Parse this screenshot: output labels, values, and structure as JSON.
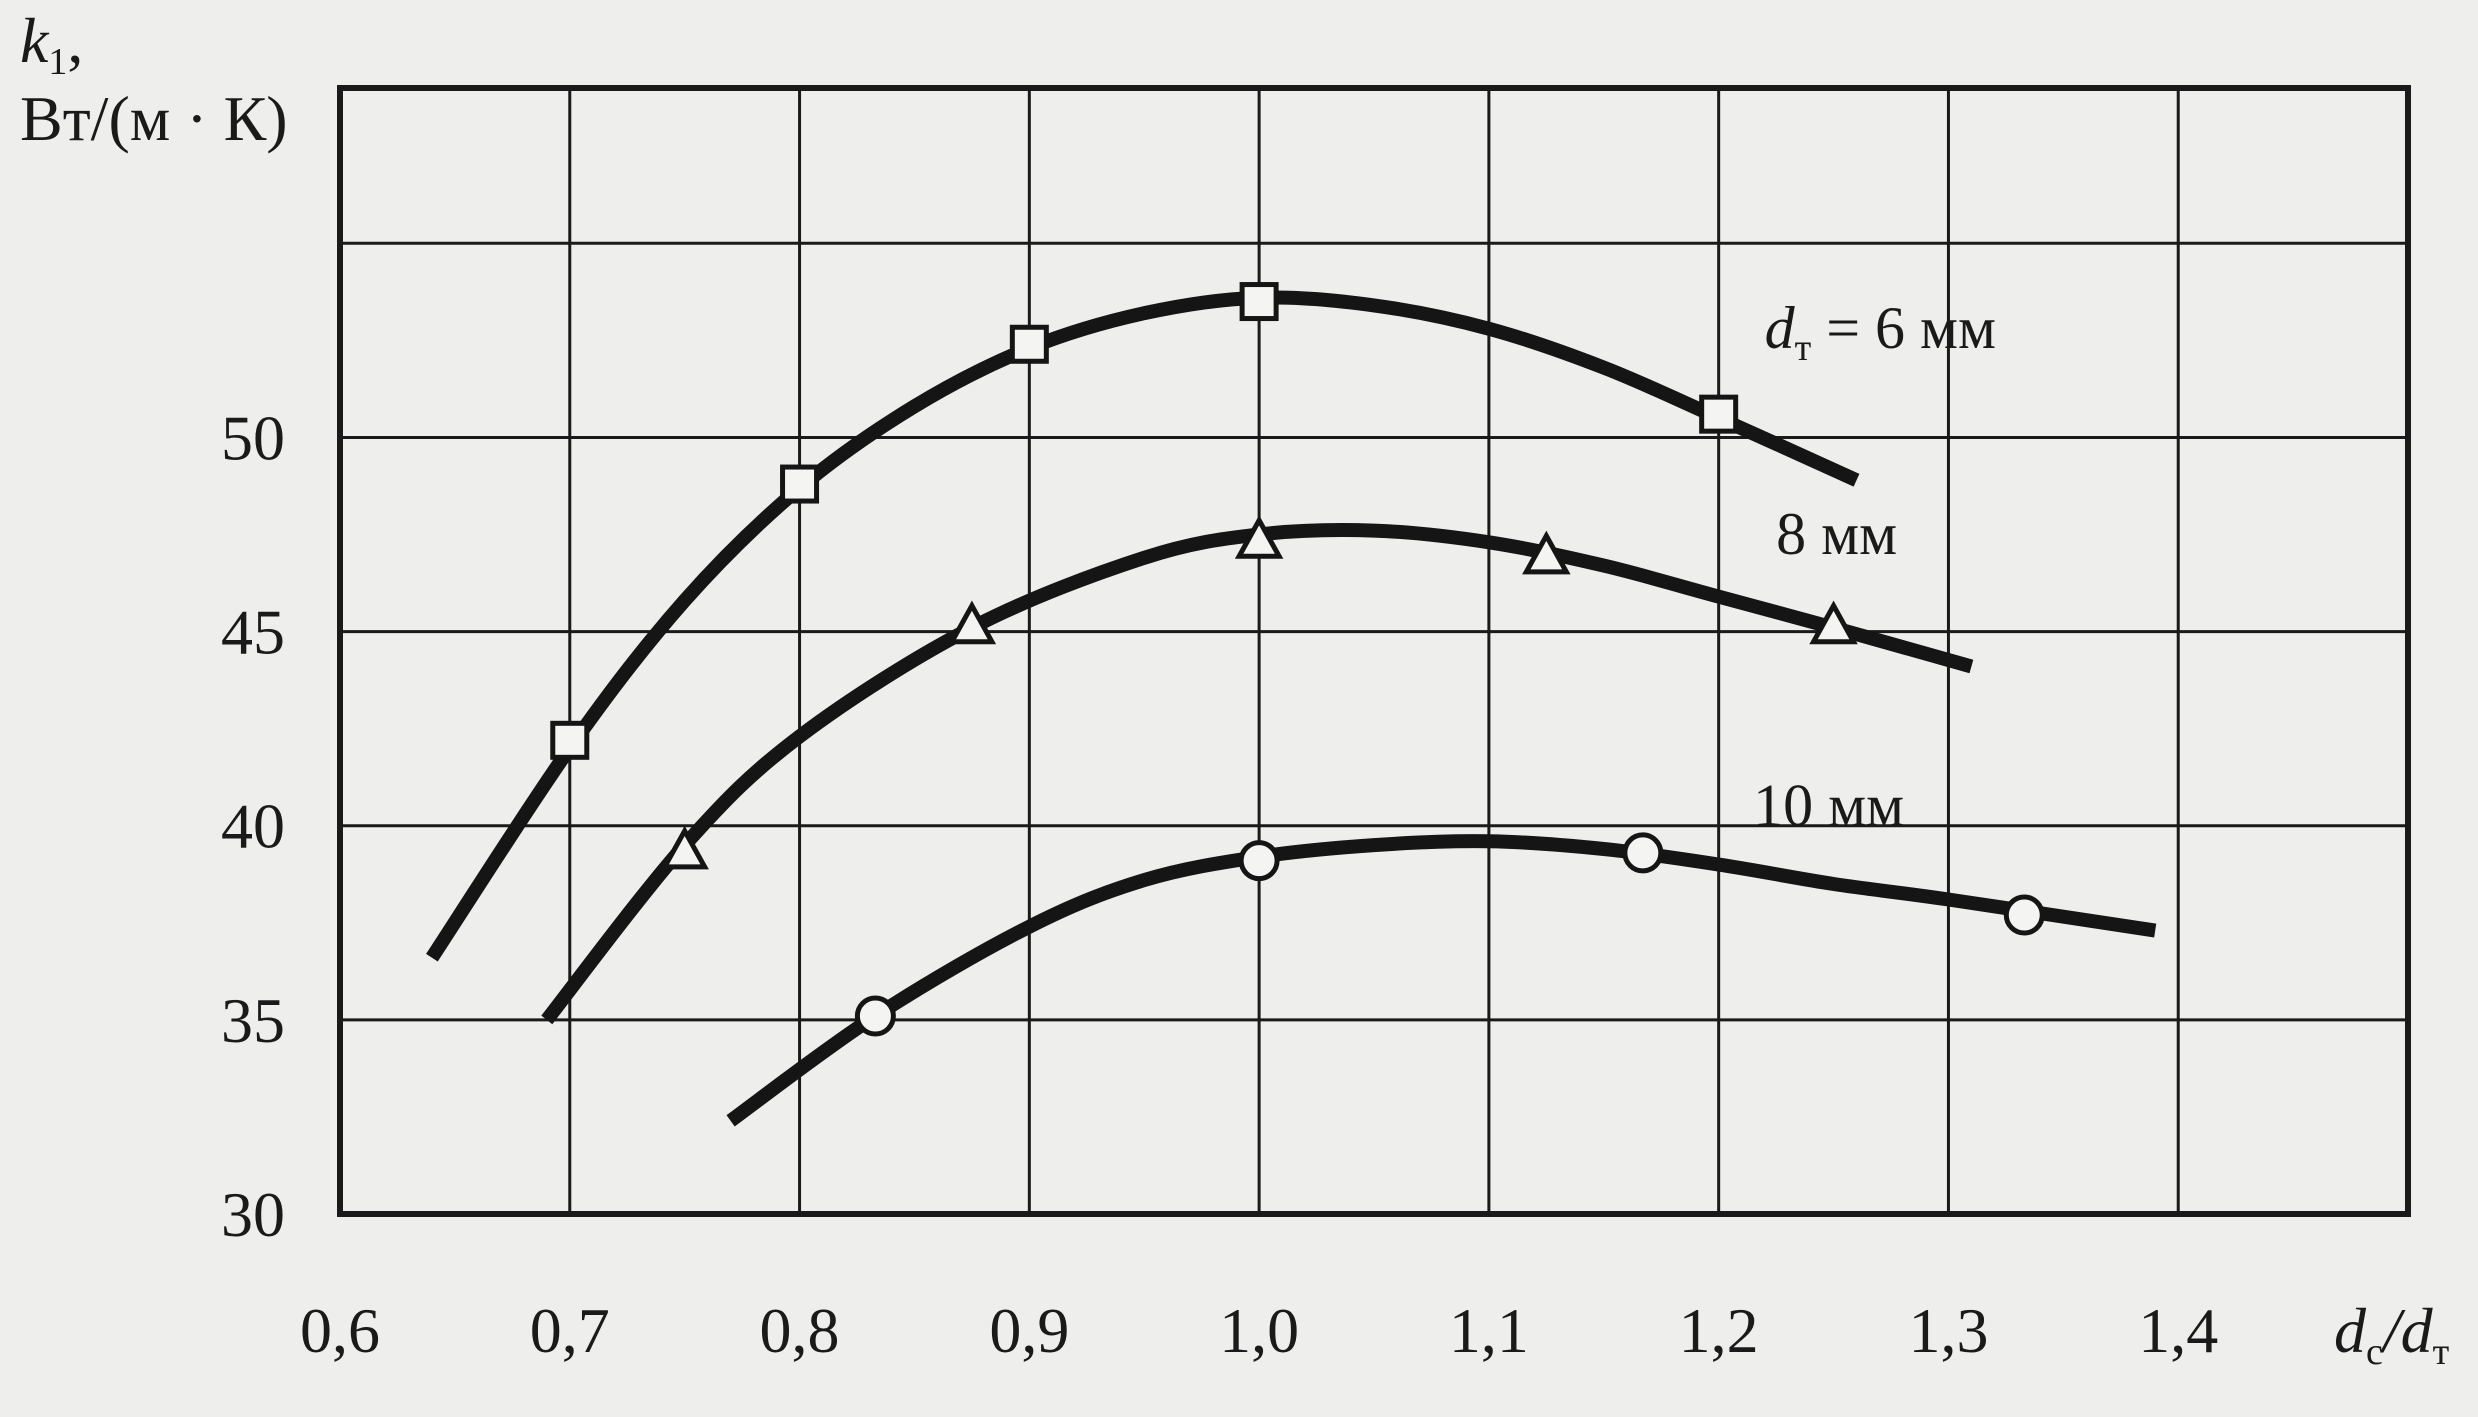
{
  "chart_data": {
    "type": "line",
    "title": "",
    "xlabel": {
      "main": "d",
      "sub": "с",
      "rest": "/d",
      "sub2": "т"
    },
    "ylabel": {
      "line1_main": "k",
      "line1_sub": "1",
      "line1_rest": ",",
      "line2": "Вт/(м · К)"
    },
    "xlim": [
      0.6,
      1.5
    ],
    "ylim": [
      30,
      59
    ],
    "grid": true,
    "x_ticks": [
      0.6,
      0.7,
      0.8,
      0.9,
      1.0,
      1.1,
      1.2,
      1.3,
      1.4,
      1.5
    ],
    "x_tick_labels": [
      "0,6",
      "0,7",
      "0,8",
      "0,9",
      "1,0",
      "1,1",
      "1,2",
      "1,3",
      "1,4"
    ],
    "y_ticks": [
      30,
      35,
      40,
      45,
      50,
      55
    ],
    "y_tick_labels": [
      "30",
      "35",
      "40",
      "45",
      "50"
    ],
    "series": [
      {
        "label_main": "d",
        "label_sub": "т",
        "label_rest": " = 6 мм",
        "marker": "square",
        "curve": [
          [
            0.64,
            36.6
          ],
          [
            0.7,
            42.0
          ],
          [
            0.75,
            45.8
          ],
          [
            0.8,
            48.7
          ],
          [
            0.85,
            50.8
          ],
          [
            0.9,
            52.3
          ],
          [
            0.95,
            53.2
          ],
          [
            1.0,
            53.6
          ],
          [
            1.05,
            53.4
          ],
          [
            1.1,
            52.8
          ],
          [
            1.15,
            51.8
          ],
          [
            1.2,
            50.5
          ],
          [
            1.26,
            48.9
          ]
        ],
        "points": [
          [
            0.7,
            42.2
          ],
          [
            0.8,
            48.8
          ],
          [
            0.9,
            52.4
          ],
          [
            1.0,
            53.5
          ],
          [
            1.2,
            50.6
          ]
        ]
      },
      {
        "label_main": "",
        "label_sub": "",
        "label_rest": "8 мм",
        "marker": "triangle",
        "curve": [
          [
            0.69,
            35.0
          ],
          [
            0.75,
            39.5
          ],
          [
            0.8,
            42.3
          ],
          [
            0.875,
            45.1
          ],
          [
            0.95,
            46.9
          ],
          [
            1.0,
            47.5
          ],
          [
            1.05,
            47.6
          ],
          [
            1.1,
            47.3
          ],
          [
            1.15,
            46.7
          ],
          [
            1.2,
            45.9
          ],
          [
            1.25,
            45.1
          ],
          [
            1.31,
            44.1
          ]
        ],
        "points": [
          [
            0.75,
            39.3
          ],
          [
            0.875,
            45.1
          ],
          [
            1.0,
            47.3
          ],
          [
            1.125,
            46.9
          ],
          [
            1.25,
            45.1
          ]
        ]
      },
      {
        "label_main": "",
        "label_sub": "",
        "label_rest": "10 мм",
        "marker": "circle",
        "curve": [
          [
            0.77,
            32.4
          ],
          [
            0.833,
            35.1
          ],
          [
            0.9,
            37.4
          ],
          [
            0.95,
            38.6
          ],
          [
            1.0,
            39.2
          ],
          [
            1.05,
            39.5
          ],
          [
            1.1,
            39.6
          ],
          [
            1.15,
            39.4
          ],
          [
            1.2,
            39.0
          ],
          [
            1.25,
            38.5
          ],
          [
            1.3,
            38.1
          ],
          [
            1.39,
            37.3
          ]
        ],
        "points": [
          [
            0.833,
            35.1
          ],
          [
            1.0,
            39.1
          ],
          [
            1.167,
            39.3
          ],
          [
            1.333,
            37.7
          ]
        ]
      }
    ],
    "curve_labels_pos": [
      [
        1.22,
        52.3
      ],
      [
        1.225,
        47.0
      ],
      [
        1.215,
        40.0
      ]
    ]
  }
}
